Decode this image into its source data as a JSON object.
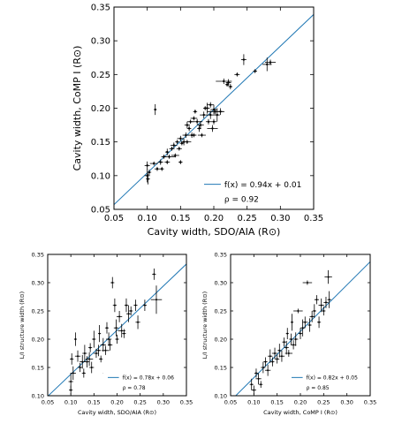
{
  "chart_data": [
    {
      "type": "scatter",
      "xlabel": "Cavity width, SDO/AIA (R⊙)",
      "ylabel": "Cavity width, CoMP I (R⊙)",
      "xlim": [
        0.05,
        0.35
      ],
      "ylim": [
        0.05,
        0.35
      ],
      "xticks": [
        "0.05",
        "0.10",
        "0.15",
        "0.20",
        "0.25",
        "0.30",
        "0.35"
      ],
      "yticks": [
        "0.05",
        "0.10",
        "0.15",
        "0.20",
        "0.25",
        "0.30",
        "0.35"
      ],
      "legend": {
        "fit_label": "f(x) = 0.94x + 0.01",
        "rho_label": "ρ = 0.92",
        "position": "lower-right"
      },
      "fit": {
        "slope": 0.94,
        "intercept": 0.01,
        "color": "#1f77b4"
      },
      "points": [
        {
          "x": 0.1,
          "y": 0.115,
          "ex": 0.004,
          "ey": 0.006
        },
        {
          "x": 0.1,
          "y": 0.1,
          "ex": 0.004,
          "ey": 0.01
        },
        {
          "x": 0.101,
          "y": 0.095,
          "ex": 0.003,
          "ey": 0.008
        },
        {
          "x": 0.103,
          "y": 0.105,
          "ex": 0.003,
          "ey": 0.004
        },
        {
          "x": 0.11,
          "y": 0.118,
          "ex": 0.006,
          "ey": 0.003
        },
        {
          "x": 0.112,
          "y": 0.198,
          "ex": 0.002,
          "ey": 0.008
        },
        {
          "x": 0.115,
          "y": 0.11,
          "ex": 0.004,
          "ey": 0.003
        },
        {
          "x": 0.12,
          "y": 0.12,
          "ex": 0.004,
          "ey": 0.004
        },
        {
          "x": 0.122,
          "y": 0.11,
          "ex": 0.003,
          "ey": 0.003
        },
        {
          "x": 0.125,
          "y": 0.128,
          "ex": 0.004,
          "ey": 0.003
        },
        {
          "x": 0.13,
          "y": 0.135,
          "ex": 0.003,
          "ey": 0.005
        },
        {
          "x": 0.13,
          "y": 0.12,
          "ex": 0.004,
          "ey": 0.003
        },
        {
          "x": 0.133,
          "y": 0.128,
          "ex": 0.01,
          "ey": 0.003
        },
        {
          "x": 0.137,
          "y": 0.14,
          "ex": 0.004,
          "ey": 0.003
        },
        {
          "x": 0.14,
          "y": 0.145,
          "ex": 0.005,
          "ey": 0.004
        },
        {
          "x": 0.142,
          "y": 0.13,
          "ex": 0.006,
          "ey": 0.003
        },
        {
          "x": 0.145,
          "y": 0.15,
          "ex": 0.003,
          "ey": 0.003
        },
        {
          "x": 0.148,
          "y": 0.14,
          "ex": 0.004,
          "ey": 0.003
        },
        {
          "x": 0.15,
          "y": 0.155,
          "ex": 0.005,
          "ey": 0.004
        },
        {
          "x": 0.15,
          "y": 0.12,
          "ex": 0.003,
          "ey": 0.003
        },
        {
          "x": 0.152,
          "y": 0.148,
          "ex": 0.003,
          "ey": 0.003
        },
        {
          "x": 0.155,
          "y": 0.15,
          "ex": 0.004,
          "ey": 0.005
        },
        {
          "x": 0.158,
          "y": 0.16,
          "ex": 0.005,
          "ey": 0.004
        },
        {
          "x": 0.16,
          "y": 0.15,
          "ex": 0.006,
          "ey": 0.003
        },
        {
          "x": 0.16,
          "y": 0.175,
          "ex": 0.004,
          "ey": 0.005
        },
        {
          "x": 0.163,
          "y": 0.17,
          "ex": 0.003,
          "ey": 0.004
        },
        {
          "x": 0.165,
          "y": 0.18,
          "ex": 0.005,
          "ey": 0.003
        },
        {
          "x": 0.167,
          "y": 0.16,
          "ex": 0.006,
          "ey": 0.004
        },
        {
          "x": 0.17,
          "y": 0.185,
          "ex": 0.005,
          "ey": 0.003
        },
        {
          "x": 0.17,
          "y": 0.16,
          "ex": 0.004,
          "ey": 0.003
        },
        {
          "x": 0.172,
          "y": 0.195,
          "ex": 0.003,
          "ey": 0.003
        },
        {
          "x": 0.175,
          "y": 0.18,
          "ex": 0.008,
          "ey": 0.004
        },
        {
          "x": 0.178,
          "y": 0.17,
          "ex": 0.003,
          "ey": 0.005
        },
        {
          "x": 0.18,
          "y": 0.175,
          "ex": 0.005,
          "ey": 0.006
        },
        {
          "x": 0.182,
          "y": 0.16,
          "ex": 0.006,
          "ey": 0.003
        },
        {
          "x": 0.185,
          "y": 0.19,
          "ex": 0.006,
          "ey": 0.005
        },
        {
          "x": 0.187,
          "y": 0.2,
          "ex": 0.003,
          "ey": 0.003
        },
        {
          "x": 0.19,
          "y": 0.2,
          "ex": 0.004,
          "ey": 0.008
        },
        {
          "x": 0.192,
          "y": 0.18,
          "ex": 0.004,
          "ey": 0.004
        },
        {
          "x": 0.195,
          "y": 0.205,
          "ex": 0.005,
          "ey": 0.004
        },
        {
          "x": 0.195,
          "y": 0.19,
          "ex": 0.006,
          "ey": 0.006
        },
        {
          "x": 0.198,
          "y": 0.17,
          "ex": 0.008,
          "ey": 0.005
        },
        {
          "x": 0.2,
          "y": 0.198,
          "ex": 0.005,
          "ey": 0.007
        },
        {
          "x": 0.2,
          "y": 0.18,
          "ex": 0.004,
          "ey": 0.004
        },
        {
          "x": 0.202,
          "y": 0.195,
          "ex": 0.012,
          "ey": 0.004
        },
        {
          "x": 0.205,
          "y": 0.19,
          "ex": 0.004,
          "ey": 0.01
        },
        {
          "x": 0.21,
          "y": 0.195,
          "ex": 0.006,
          "ey": 0.005
        },
        {
          "x": 0.215,
          "y": 0.24,
          "ex": 0.012,
          "ey": 0.004
        },
        {
          "x": 0.22,
          "y": 0.235,
          "ex": 0.003,
          "ey": 0.003
        },
        {
          "x": 0.222,
          "y": 0.238,
          "ex": 0.004,
          "ey": 0.005
        },
        {
          "x": 0.225,
          "y": 0.232,
          "ex": 0.003,
          "ey": 0.004
        },
        {
          "x": 0.235,
          "y": 0.25,
          "ex": 0.004,
          "ey": 0.003
        },
        {
          "x": 0.245,
          "y": 0.272,
          "ex": 0.004,
          "ey": 0.008
        },
        {
          "x": 0.262,
          "y": 0.255,
          "ex": 0.003,
          "ey": 0.003
        },
        {
          "x": 0.28,
          "y": 0.265,
          "ex": 0.007,
          "ey": 0.01
        },
        {
          "x": 0.285,
          "y": 0.268,
          "ex": 0.008,
          "ey": 0.004
        }
      ]
    },
    {
      "type": "scatter",
      "xlabel": "Cavity width, SDO/AIA (R⊙)",
      "ylabel": "L/I structure width (R⊙)",
      "xlim": [
        0.05,
        0.35
      ],
      "ylim": [
        0.1,
        0.35
      ],
      "xticks": [
        "0.05",
        "0.10",
        "0.15",
        "0.20",
        "0.25",
        "0.30",
        "0.35"
      ],
      "yticks": [
        "0.10",
        "0.15",
        "0.20",
        "0.25",
        "0.30",
        "0.35"
      ],
      "legend": {
        "fit_label": "f(x) = 0.78x + 0.06",
        "rho_label": "ρ = 0.78",
        "position": "lower-right"
      },
      "fit": {
        "slope": 0.78,
        "intercept": 0.06,
        "color": "#1f77b4"
      },
      "points": [
        {
          "x": 0.1,
          "y": 0.125,
          "ex": 0.005,
          "ey": 0.015
        },
        {
          "x": 0.1,
          "y": 0.11,
          "ex": 0.004,
          "ey": 0.008
        },
        {
          "x": 0.102,
          "y": 0.165,
          "ex": 0.004,
          "ey": 0.01
        },
        {
          "x": 0.105,
          "y": 0.14,
          "ex": 0.006,
          "ey": 0.012
        },
        {
          "x": 0.11,
          "y": 0.2,
          "ex": 0.003,
          "ey": 0.012
        },
        {
          "x": 0.115,
          "y": 0.17,
          "ex": 0.006,
          "ey": 0.01
        },
        {
          "x": 0.12,
          "y": 0.15,
          "ex": 0.005,
          "ey": 0.008
        },
        {
          "x": 0.125,
          "y": 0.16,
          "ex": 0.006,
          "ey": 0.012
        },
        {
          "x": 0.128,
          "y": 0.14,
          "ex": 0.004,
          "ey": 0.008
        },
        {
          "x": 0.13,
          "y": 0.175,
          "ex": 0.005,
          "ey": 0.015
        },
        {
          "x": 0.135,
          "y": 0.16,
          "ex": 0.006,
          "ey": 0.01
        },
        {
          "x": 0.14,
          "y": 0.165,
          "ex": 0.008,
          "ey": 0.012
        },
        {
          "x": 0.142,
          "y": 0.185,
          "ex": 0.004,
          "ey": 0.008
        },
        {
          "x": 0.145,
          "y": 0.15,
          "ex": 0.005,
          "ey": 0.01
        },
        {
          "x": 0.15,
          "y": 0.2,
          "ex": 0.004,
          "ey": 0.015
        },
        {
          "x": 0.155,
          "y": 0.175,
          "ex": 0.006,
          "ey": 0.008
        },
        {
          "x": 0.16,
          "y": 0.18,
          "ex": 0.005,
          "ey": 0.01
        },
        {
          "x": 0.162,
          "y": 0.21,
          "ex": 0.003,
          "ey": 0.015
        },
        {
          "x": 0.165,
          "y": 0.165,
          "ex": 0.004,
          "ey": 0.006
        },
        {
          "x": 0.17,
          "y": 0.19,
          "ex": 0.006,
          "ey": 0.012
        },
        {
          "x": 0.175,
          "y": 0.18,
          "ex": 0.008,
          "ey": 0.008
        },
        {
          "x": 0.178,
          "y": 0.22,
          "ex": 0.004,
          "ey": 0.01
        },
        {
          "x": 0.18,
          "y": 0.14,
          "ex": 0.01,
          "ey": 0.004
        },
        {
          "x": 0.182,
          "y": 0.2,
          "ex": 0.006,
          "ey": 0.012
        },
        {
          "x": 0.185,
          "y": 0.19,
          "ex": 0.005,
          "ey": 0.01
        },
        {
          "x": 0.19,
          "y": 0.3,
          "ex": 0.004,
          "ey": 0.01
        },
        {
          "x": 0.195,
          "y": 0.26,
          "ex": 0.004,
          "ey": 0.012
        },
        {
          "x": 0.198,
          "y": 0.22,
          "ex": 0.005,
          "ey": 0.015
        },
        {
          "x": 0.2,
          "y": 0.2,
          "ex": 0.004,
          "ey": 0.008
        },
        {
          "x": 0.205,
          "y": 0.24,
          "ex": 0.006,
          "ey": 0.01
        },
        {
          "x": 0.21,
          "y": 0.215,
          "ex": 0.008,
          "ey": 0.012
        },
        {
          "x": 0.215,
          "y": 0.21,
          "ex": 0.004,
          "ey": 0.008
        },
        {
          "x": 0.22,
          "y": 0.26,
          "ex": 0.004,
          "ey": 0.012
        },
        {
          "x": 0.225,
          "y": 0.245,
          "ex": 0.005,
          "ey": 0.015
        },
        {
          "x": 0.23,
          "y": 0.25,
          "ex": 0.004,
          "ey": 0.008
        },
        {
          "x": 0.24,
          "y": 0.26,
          "ex": 0.004,
          "ey": 0.01
        },
        {
          "x": 0.245,
          "y": 0.23,
          "ex": 0.005,
          "ey": 0.012
        },
        {
          "x": 0.26,
          "y": 0.26,
          "ex": 0.004,
          "ey": 0.01
        },
        {
          "x": 0.28,
          "y": 0.315,
          "ex": 0.004,
          "ey": 0.01
        },
        {
          "x": 0.285,
          "y": 0.27,
          "ex": 0.012,
          "ey": 0.025
        }
      ]
    },
    {
      "type": "scatter",
      "xlabel": "Cavity width, CoMP I (R⊙)",
      "ylabel": "L/I structure width (R⊙)",
      "xlim": [
        0.05,
        0.35
      ],
      "ylim": [
        0.1,
        0.35
      ],
      "xticks": [
        "0.05",
        "0.10",
        "0.15",
        "0.20",
        "0.25",
        "0.30",
        "0.35"
      ],
      "yticks": [
        "0.10",
        "0.15",
        "0.20",
        "0.25",
        "0.30",
        "0.35"
      ],
      "legend": {
        "fit_label": "f(x) = 0.82x + 0.05",
        "rho_label": "ρ = 0.85",
        "position": "lower-right"
      },
      "fit": {
        "slope": 0.82,
        "intercept": 0.05,
        "color": "#1f77b4"
      },
      "points": [
        {
          "x": 0.095,
          "y": 0.12,
          "ex": 0.004,
          "ey": 0.01
        },
        {
          "x": 0.1,
          "y": 0.11,
          "ex": 0.005,
          "ey": 0.008
        },
        {
          "x": 0.105,
          "y": 0.14,
          "ex": 0.004,
          "ey": 0.008
        },
        {
          "x": 0.11,
          "y": 0.13,
          "ex": 0.006,
          "ey": 0.01
        },
        {
          "x": 0.115,
          "y": 0.12,
          "ex": 0.004,
          "ey": 0.006
        },
        {
          "x": 0.12,
          "y": 0.15,
          "ex": 0.005,
          "ey": 0.01
        },
        {
          "x": 0.125,
          "y": 0.16,
          "ex": 0.004,
          "ey": 0.008
        },
        {
          "x": 0.13,
          "y": 0.145,
          "ex": 0.006,
          "ey": 0.01
        },
        {
          "x": 0.135,
          "y": 0.17,
          "ex": 0.005,
          "ey": 0.012
        },
        {
          "x": 0.14,
          "y": 0.16,
          "ex": 0.004,
          "ey": 0.008
        },
        {
          "x": 0.145,
          "y": 0.175,
          "ex": 0.006,
          "ey": 0.01
        },
        {
          "x": 0.15,
          "y": 0.165,
          "ex": 0.005,
          "ey": 0.008
        },
        {
          "x": 0.155,
          "y": 0.18,
          "ex": 0.004,
          "ey": 0.012
        },
        {
          "x": 0.16,
          "y": 0.17,
          "ex": 0.006,
          "ey": 0.01
        },
        {
          "x": 0.165,
          "y": 0.195,
          "ex": 0.004,
          "ey": 0.008
        },
        {
          "x": 0.17,
          "y": 0.185,
          "ex": 0.005,
          "ey": 0.012
        },
        {
          "x": 0.172,
          "y": 0.21,
          "ex": 0.003,
          "ey": 0.01
        },
        {
          "x": 0.175,
          "y": 0.175,
          "ex": 0.008,
          "ey": 0.006
        },
        {
          "x": 0.18,
          "y": 0.2,
          "ex": 0.004,
          "ey": 0.01
        },
        {
          "x": 0.182,
          "y": 0.23,
          "ex": 0.003,
          "ey": 0.015
        },
        {
          "x": 0.185,
          "y": 0.19,
          "ex": 0.006,
          "ey": 0.008
        },
        {
          "x": 0.19,
          "y": 0.2,
          "ex": 0.005,
          "ey": 0.012
        },
        {
          "x": 0.195,
          "y": 0.25,
          "ex": 0.01,
          "ey": 0.004
        },
        {
          "x": 0.2,
          "y": 0.21,
          "ex": 0.004,
          "ey": 0.01
        },
        {
          "x": 0.205,
          "y": 0.22,
          "ex": 0.005,
          "ey": 0.015
        },
        {
          "x": 0.21,
          "y": 0.23,
          "ex": 0.006,
          "ey": 0.01
        },
        {
          "x": 0.215,
          "y": 0.3,
          "ex": 0.01,
          "ey": 0.004
        },
        {
          "x": 0.22,
          "y": 0.225,
          "ex": 0.004,
          "ey": 0.012
        },
        {
          "x": 0.225,
          "y": 0.24,
          "ex": 0.005,
          "ey": 0.01
        },
        {
          "x": 0.23,
          "y": 0.25,
          "ex": 0.004,
          "ey": 0.012
        },
        {
          "x": 0.235,
          "y": 0.27,
          "ex": 0.005,
          "ey": 0.008
        },
        {
          "x": 0.24,
          "y": 0.23,
          "ex": 0.004,
          "ey": 0.01
        },
        {
          "x": 0.245,
          "y": 0.26,
          "ex": 0.006,
          "ey": 0.012
        },
        {
          "x": 0.25,
          "y": 0.25,
          "ex": 0.004,
          "ey": 0.008
        },
        {
          "x": 0.255,
          "y": 0.265,
          "ex": 0.005,
          "ey": 0.01
        },
        {
          "x": 0.26,
          "y": 0.31,
          "ex": 0.008,
          "ey": 0.012
        },
        {
          "x": 0.262,
          "y": 0.27,
          "ex": 0.004,
          "ey": 0.015
        }
      ]
    }
  ]
}
